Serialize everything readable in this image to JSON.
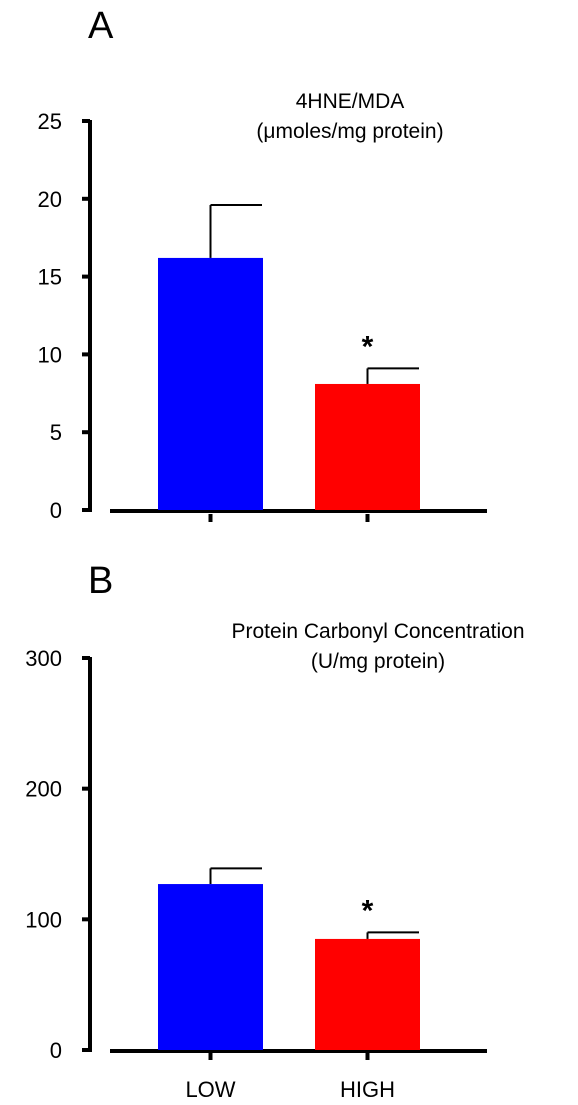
{
  "chart_data": [
    {
      "panel": "A",
      "type": "bar",
      "title": "4HNE/MDA",
      "subtitle": "(μmoles/mg protein)",
      "categories": [
        "",
        ""
      ],
      "values": [
        16.2,
        8.1
      ],
      "errors": [
        3.4,
        1.0
      ],
      "colors": [
        "#0000ff",
        "#ff0000"
      ],
      "significance": [
        "",
        "*"
      ],
      "ylim": [
        0,
        25
      ],
      "yticks": [
        0,
        5,
        10,
        15,
        20,
        25
      ],
      "xlabel": "",
      "ylabel": ""
    },
    {
      "panel": "B",
      "type": "bar",
      "title": "Protein Carbonyl Concentration",
      "subtitle": "(U/mg protein)",
      "categories": [
        "LOW",
        "HIGH"
      ],
      "values": [
        127,
        85
      ],
      "errors": [
        12,
        5
      ],
      "colors": [
        "#0000ff",
        "#ff0000"
      ],
      "significance": [
        "",
        "*"
      ],
      "ylim": [
        0,
        300
      ],
      "yticks": [
        0,
        100,
        200,
        300
      ],
      "xlabel": "",
      "ylabel": ""
    }
  ]
}
